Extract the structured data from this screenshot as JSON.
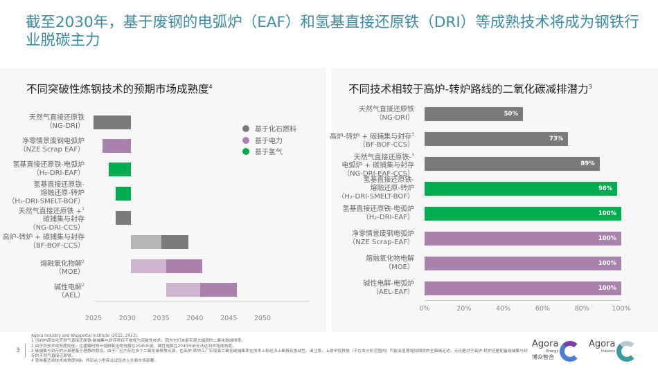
{
  "header": {
    "title": "截至2030年，基于废钢的电弧炉（EAF）和氢基直接还原铁（DRI）等成熟技术将成为钢铁行业脱碳主力"
  },
  "colors": {
    "fossil": "#7a7a7a",
    "fossil_light": "#b8b8b8",
    "power": "#a882ad",
    "power_light": "#d0b4cf",
    "hydrogen": "#00ac4e",
    "title": "#3b8ba3"
  },
  "chart_data": [
    {
      "type": "bar",
      "orientation": "horizontal-range",
      "title": "不同突破性炼钢技术的预期市场成熟度",
      "title_sup": "4",
      "xlim": [
        2025,
        2050
      ],
      "xticks": [
        "2025",
        "2030",
        "2035",
        "2040",
        "2045",
        "2050"
      ],
      "legend_position": "top-right",
      "legend": [
        {
          "label": "基于化石燃料",
          "color": "#7a7a7a"
        },
        {
          "label": "基于电力",
          "color": "#a882ad"
        },
        {
          "label": "基于氢气",
          "color": "#00ac4e"
        }
      ],
      "rows": [
        {
          "lines": [
            "天然气直接还原铁",
            "（NG-DRI）"
          ],
          "sup": "",
          "group": "fossil",
          "segments": [
            {
              "start": 2025,
              "end": 2030.5,
              "shade": "dark"
            }
          ]
        },
        {
          "lines": [
            "净零情景废钢电弧炉",
            "（NZE Scrap EAF）"
          ],
          "sup": "",
          "group": "power",
          "segments": [
            {
              "start": 2026.3,
              "end": 2030.5,
              "shade": "dark"
            }
          ]
        },
        {
          "lines": [
            "氢基直接还原铁-电弧炉",
            "（H₂-DRI-EAF）"
          ],
          "sup": "",
          "group": "hydrogen",
          "segments": [
            {
              "start": 2027.3,
              "end": 2030.5,
              "shade": "dark"
            }
          ]
        },
        {
          "lines": [
            "氢基直接还原铁-",
            "熔融还原-转炉",
            "（H₂-DRI-SMELT-BOF）"
          ],
          "sup": "",
          "group": "hydrogen",
          "segments": [
            {
              "start": 2028.3,
              "end": 2030.5,
              "shade": "dark"
            }
          ]
        },
        {
          "lines": [
            "天然气直接还原铁 +",
            "碳捕集与封存",
            "（NG-DRI-CCS）"
          ],
          "sup": "1",
          "group": "fossil",
          "segments": [
            {
              "start": 2028.3,
              "end": 2030.5,
              "shade": "dark"
            }
          ]
        },
        {
          "lines": [
            "高炉-转炉 + 碳捕集与封存",
            "（BF-BOF-CCS）"
          ],
          "sup": "",
          "group": "fossil",
          "segments": [
            {
              "start": 2030.5,
              "end": 2035,
              "shade": "light"
            },
            {
              "start": 2035,
              "end": 2039,
              "shade": "dark"
            }
          ]
        },
        {
          "lines": [
            "熔融氧化物解",
            "（MOE）"
          ],
          "sup": "2",
          "group": "power",
          "segments": [
            {
              "start": 2030.5,
              "end": 2035.8,
              "shade": "light"
            },
            {
              "start": 2035.8,
              "end": 2041.1,
              "shade": "dark"
            }
          ]
        },
        {
          "lines": [
            "碱性电解",
            "（AEL）"
          ],
          "sup": "2",
          "group": "power",
          "segments": [
            {
              "start": 2035.8,
              "end": 2040.8,
              "shade": "light"
            },
            {
              "start": 2040.8,
              "end": 2046.2,
              "shade": "dark"
            }
          ]
        }
      ]
    },
    {
      "type": "bar",
      "orientation": "horizontal",
      "title": "不同技术相较于高炉-转炉路线的二氧化碳减排潜力",
      "title_sup": "3",
      "xlim": [
        0,
        100
      ],
      "xticks": [
        "0%",
        "20%",
        "40%",
        "60%",
        "80%",
        "100%"
      ],
      "rows": [
        {
          "lines": [
            "天然气直接还原铁",
            "（NG-DRI）"
          ],
          "sup": "",
          "group": "fossil",
          "value": 50,
          "label": "50%"
        },
        {
          "lines": [
            "高炉-转炉 + 碳捕集与封存",
            "（BF-BOF-CCS）"
          ],
          "sup": "3",
          "group": "fossil",
          "value": 73,
          "label": "73%"
        },
        {
          "lines": [
            "天然气直接还原铁-",
            "电弧炉 + 碳捕集与封存",
            "（NG-DRI-EAF-CCS）"
          ],
          "sup": "3",
          "group": "fossil",
          "value": 89,
          "label": "89%"
        },
        {
          "lines": [
            "氢基直接还原铁-",
            "熔融还原-转炉",
            "（H₂-DRI-SMELT-BOF）"
          ],
          "sup": "",
          "group": "hydrogen",
          "value": 98,
          "label": "98%"
        },
        {
          "lines": [
            "氢基直接还原铁-电弧炉",
            "（H₂-DRI-EAF）"
          ],
          "sup": "",
          "group": "hydrogen",
          "value": 100,
          "label": "100%"
        },
        {
          "lines": [
            "净零情景废钢电弧炉",
            "（NZE Scrap-EAF）"
          ],
          "sup": "",
          "group": "power",
          "value": 100,
          "label": "100%"
        },
        {
          "lines": [
            "熔融氧化物电解",
            "（MOE）"
          ],
          "sup": "",
          "group": "power",
          "value": 100,
          "label": "100%"
        },
        {
          "lines": [
            "碱性电解-电弧炉",
            "（AEL-EAF）"
          ],
          "sup": "",
          "group": "power",
          "value": 100,
          "label": "100%"
        }
      ]
    }
  ],
  "footer": {
    "page": "3",
    "notes": [
      "Agora Industry and Wuppertal Institute (2022, 2023).",
      "1 当前的商业化天然气直接还原铁-碳捕集与封存项目不被视为突破性技术，因为它们未能实现大幅度的二氧化碳减排率。",
      "2 由于其技术成熟度较低，在建模时预计熔融氧化物电解在2035年前、碱性电解在2040年前无法达到市场成熟度。",
      "3 碳捕集与封存的计算是基于理想的假设。由于厂区内存在多个二氧化碳排放点源，在高炉-转炉工厂实现高二氧化碳捕集率在技术上和经济上都具有挑战性。请注意，上游甲烷排放（不在本分析范围内）可能会显著增加钢铁的全面碳足迹，无论是对于高炉-转炉还是配备碳捕集与封存的天然气直接还原铁。",
      "4 意味着达到技术成熟度9级，然后从小型商业试验进入全面市场部署。"
    ],
    "logos": [
      {
        "name": "Agora",
        "sub": "Energy",
        "zh": "博众智合"
      },
      {
        "name": "Agora",
        "sub": "Industry"
      }
    ]
  }
}
